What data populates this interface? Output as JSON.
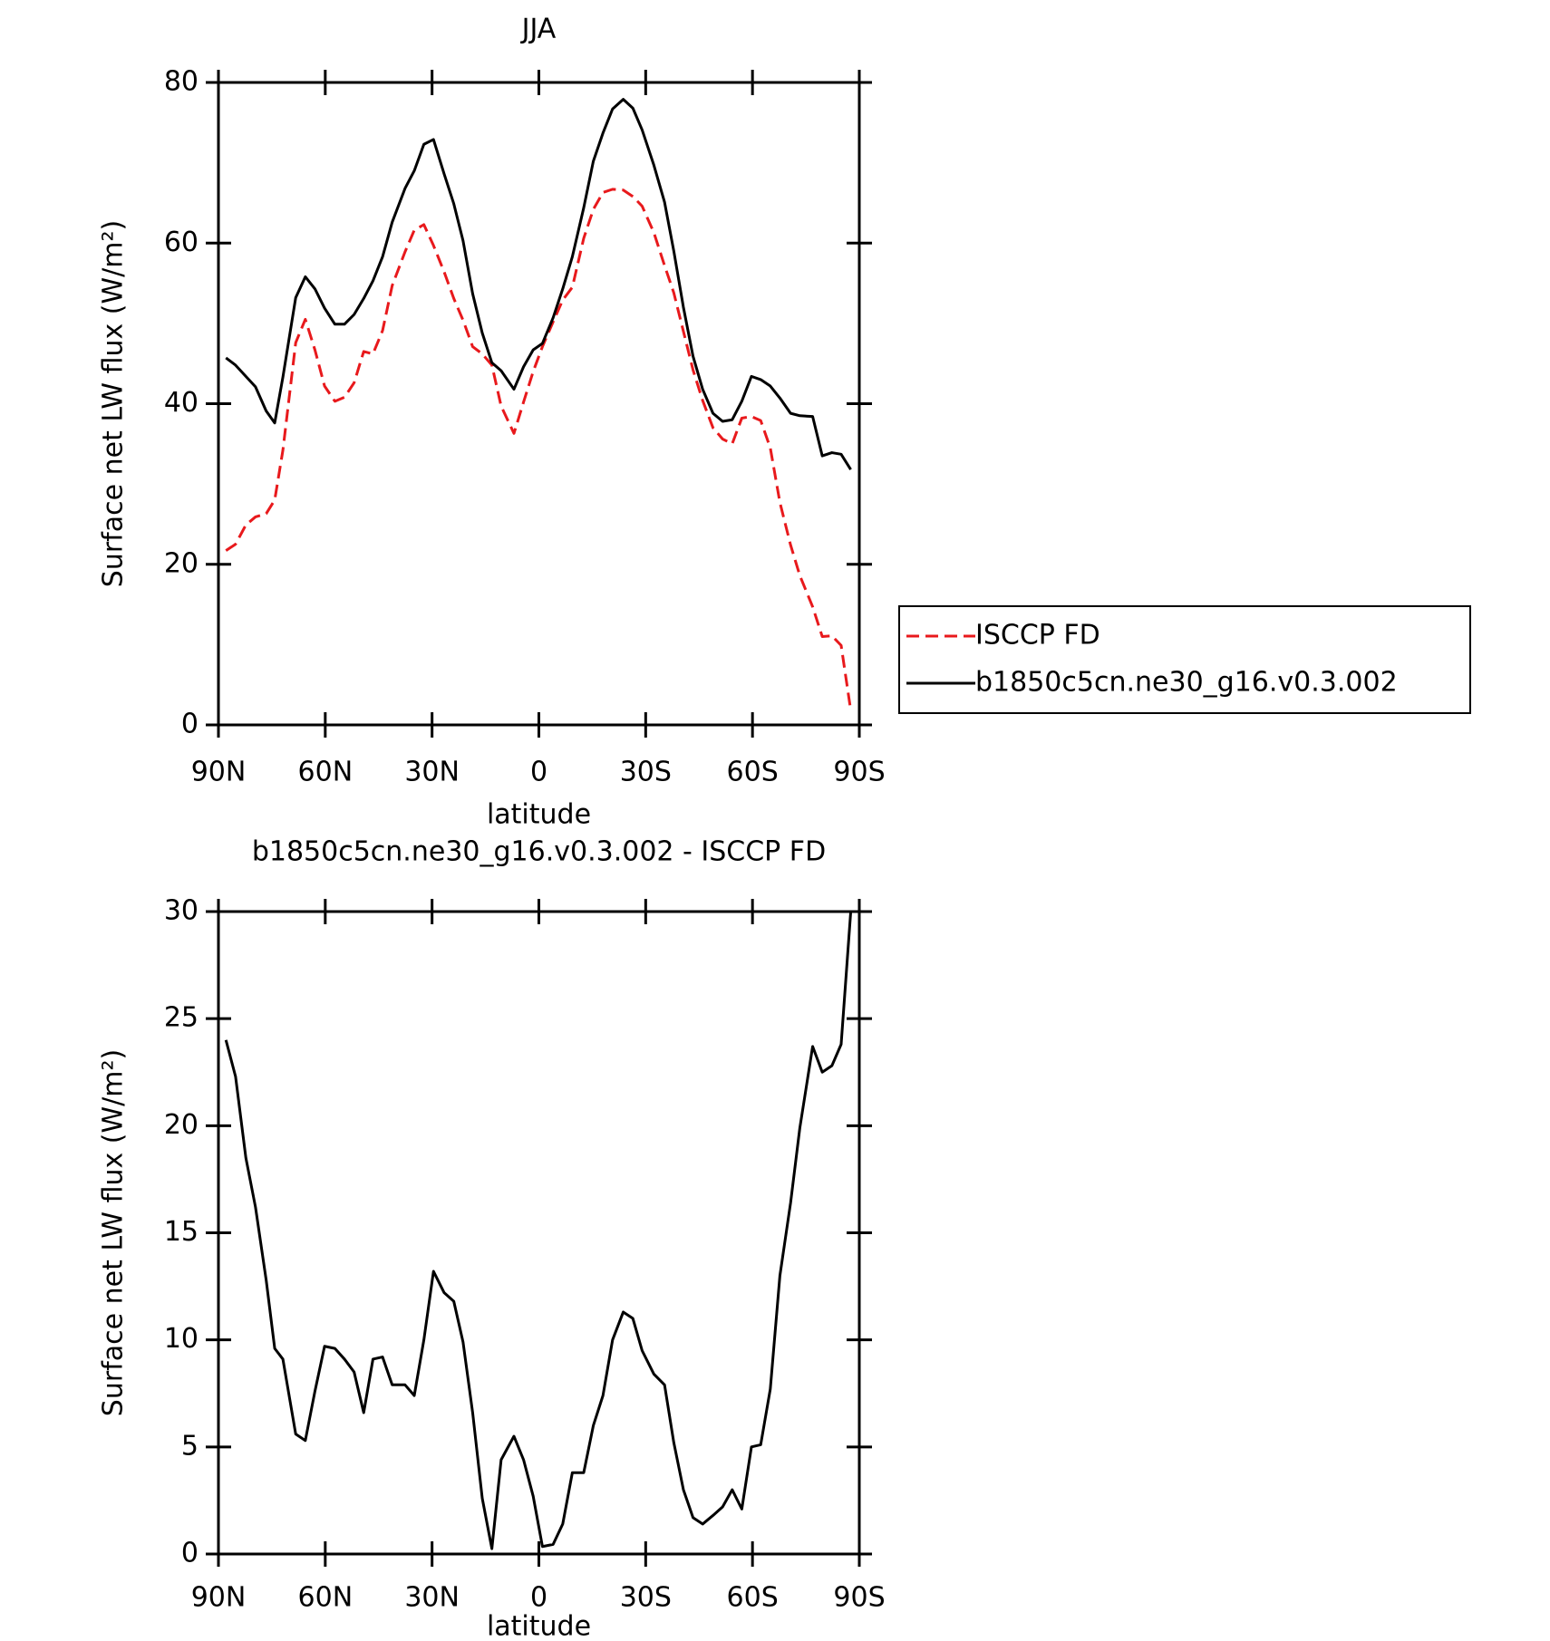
{
  "chart_data": [
    {
      "type": "line",
      "title": "JJA",
      "xlabel": "latitude",
      "ylabel": "Surface net LW flux (W/m²)",
      "x": [
        87.9,
        85.2,
        82.3,
        79.6,
        76.6,
        74.2,
        71.9,
        68.3,
        65.6,
        62.9,
        60.2,
        57.3,
        54.6,
        51.9,
        49.2,
        46.6,
        43.9,
        41.2,
        37.6,
        35.0,
        32.3,
        29.6,
        26.6,
        23.9,
        21.3,
        18.6,
        15.9,
        13.2,
        10.6,
        7.0,
        4.3,
        1.6,
        -1.0,
        -4.0,
        -6.7,
        -9.4,
        -12.6,
        -15.3,
        -18.0,
        -20.7,
        -23.7,
        -26.4,
        -29.0,
        -32.3,
        -35.3,
        -37.9,
        -40.6,
        -43.3,
        -46.0,
        -48.9,
        -51.6,
        -54.3,
        -57.0,
        -59.7,
        -62.3,
        -65.0,
        -67.7,
        -70.7,
        -73.3,
        -76.9,
        -79.6,
        -82.3,
        -84.9,
        -87.6
      ],
      "series": [
        {
          "name": "ISCCP FD",
          "color": "#e8191c",
          "dash": true,
          "values": [
            21.7,
            22.5,
            24.9,
            25.9,
            26.3,
            28.0,
            34.2,
            47.6,
            50.5,
            46.7,
            42.2,
            40.3,
            40.8,
            42.6,
            46.5,
            46.2,
            49.1,
            54.7,
            58.9,
            61.6,
            62.3,
            59.7,
            56.4,
            53.1,
            50.4,
            47.1,
            46.2,
            44.8,
            39.7,
            36.3,
            40.2,
            44.0,
            47.1,
            50.2,
            52.9,
            54.5,
            60.6,
            64.2,
            66.3,
            66.7,
            66.6,
            65.8,
            64.6,
            61.3,
            57.2,
            53.8,
            49.0,
            44.2,
            40.4,
            37.0,
            35.6,
            35.0,
            38.2,
            38.4,
            37.9,
            34.5,
            27.7,
            22.4,
            18.6,
            14.7,
            11.0,
            11.1,
            9.9,
            1.8
          ]
        },
        {
          "name": "b1850c5cn.ne30_g16.v0.3.002",
          "color": "#000000",
          "dash": false,
          "values": [
            45.7,
            44.8,
            43.4,
            42.1,
            39.1,
            37.6,
            43.3,
            53.2,
            55.8,
            54.3,
            51.9,
            49.9,
            49.9,
            51.1,
            53.1,
            55.3,
            58.3,
            62.6,
            66.8,
            69.0,
            72.3,
            72.9,
            68.6,
            64.9,
            60.3,
            53.7,
            48.8,
            45.1,
            44.1,
            41.8,
            44.6,
            46.7,
            47.5,
            50.7,
            54.3,
            58.3,
            64.4,
            70.2,
            73.7,
            76.7,
            77.9,
            76.8,
            74.1,
            69.7,
            65.1,
            59.0,
            52.0,
            45.9,
            41.8,
            38.8,
            37.8,
            38.0,
            40.3,
            43.4,
            43.0,
            42.2,
            40.7,
            38.8,
            38.5,
            38.4,
            33.5,
            33.9,
            33.7,
            31.8
          ]
        }
      ],
      "xlim": [
        90,
        -90
      ],
      "xticks": [
        {
          "value": 90,
          "label": "90N"
        },
        {
          "value": 60,
          "label": "60N"
        },
        {
          "value": 30,
          "label": "30N"
        },
        0,
        {
          "value": -30,
          "label": "30S"
        },
        {
          "value": -60,
          "label": "60S"
        },
        {
          "value": -90,
          "label": "90S"
        }
      ],
      "ylim": [
        0,
        80
      ],
      "yticks": [
        0,
        20,
        40,
        60,
        80
      ],
      "legend": "outside-right"
    },
    {
      "type": "line",
      "title": "b1850c5cn.ne30_g16.v0.3.002 - ISCCP FD",
      "xlabel": "latitude",
      "ylabel": "Surface net LW flux (W/m²)",
      "x": [
        87.9,
        85.2,
        82.3,
        79.6,
        76.6,
        74.2,
        71.9,
        68.3,
        65.6,
        62.9,
        60.2,
        57.3,
        54.6,
        51.9,
        49.2,
        46.6,
        43.9,
        41.2,
        37.6,
        35.0,
        32.3,
        29.6,
        26.6,
        23.9,
        21.3,
        18.6,
        15.9,
        13.2,
        10.6,
        7.0,
        4.3,
        1.6,
        -1.0,
        -4.0,
        -6.7,
        -9.4,
        -12.6,
        -15.3,
        -18.0,
        -20.7,
        -23.7,
        -26.4,
        -29.0,
        -32.3,
        -35.3,
        -37.9,
        -40.6,
        -43.3,
        -46.0,
        -48.9,
        -51.6,
        -54.3,
        -57.0,
        -59.7,
        -62.3,
        -65.0,
        -67.7,
        -70.7,
        -73.3,
        -76.9,
        -79.6,
        -82.3,
        -84.9,
        -87.6
      ],
      "series": [
        {
          "color": "#000000",
          "dash": false,
          "values": [
            24.0,
            22.3,
            18.5,
            16.2,
            12.8,
            9.6,
            9.1,
            5.6,
            5.3,
            7.6,
            9.7,
            9.6,
            9.1,
            8.5,
            6.6,
            9.1,
            9.2,
            7.9,
            7.9,
            7.4,
            10.0,
            13.2,
            12.2,
            11.8,
            9.9,
            6.6,
            2.6,
            0.25,
            4.4,
            5.5,
            4.4,
            2.7,
            0.35,
            0.45,
            1.4,
            3.8,
            3.8,
            6.0,
            7.4,
            10.0,
            11.3,
            11.0,
            9.5,
            8.4,
            7.9,
            5.2,
            3.0,
            1.7,
            1.4,
            1.8,
            2.2,
            3.0,
            2.1,
            5.0,
            5.1,
            7.7,
            13.0,
            16.4,
            19.9,
            23.7,
            22.5,
            22.8,
            23.8,
            30.0
          ]
        }
      ],
      "xlim": [
        90,
        -90
      ],
      "xticks": [
        {
          "value": 90,
          "label": "90N"
        },
        {
          "value": 60,
          "label": "60N"
        },
        {
          "value": 30,
          "label": "30N"
        },
        0,
        {
          "value": -30,
          "label": "30S"
        },
        {
          "value": -60,
          "label": "60S"
        },
        {
          "value": -90,
          "label": "90S"
        }
      ],
      "ylim": [
        0,
        30
      ],
      "yticks": [
        0,
        5,
        10,
        15,
        20,
        25,
        30
      ]
    }
  ]
}
